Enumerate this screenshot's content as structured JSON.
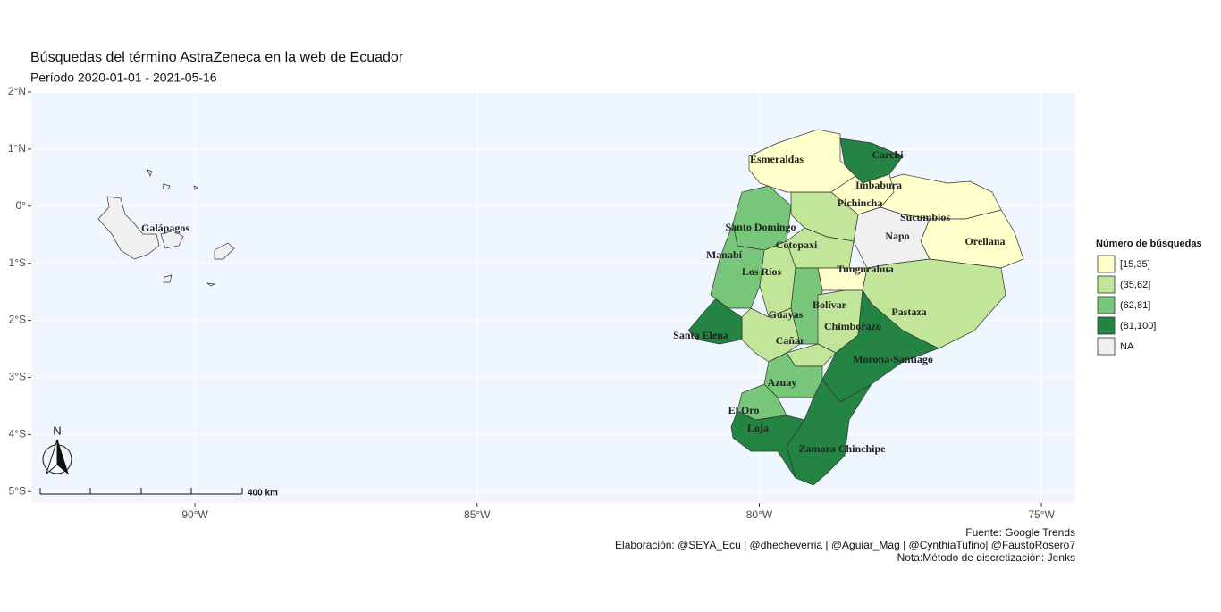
{
  "map": {
    "title": "Búsquedas del término AstraZeneca en la web de Ecuador",
    "subtitle": "Período 2020-01-01 - 2021-05-16",
    "xlim": [
      -92.9,
      -74.4
    ],
    "ylim": [
      -5.2,
      2.0
    ],
    "xticks": [
      {
        "value": -90,
        "label": "90°W"
      },
      {
        "value": -85,
        "label": "85°W"
      },
      {
        "value": -80,
        "label": "80°W"
      },
      {
        "value": -75,
        "label": "75°W"
      }
    ],
    "yticks": [
      {
        "value": 2,
        "label": "2°N"
      },
      {
        "value": 1,
        "label": "1°N"
      },
      {
        "value": 0,
        "label": "0°"
      },
      {
        "value": -1,
        "label": "1°S"
      },
      {
        "value": -2,
        "label": "2°S"
      },
      {
        "value": -3,
        "label": "3°S"
      },
      {
        "value": -4,
        "label": "4°S"
      },
      {
        "value": -5,
        "label": "5°S"
      }
    ],
    "grid": true,
    "legend": {
      "title": "Número de búsquedas",
      "items": [
        {
          "label": "[15,35]",
          "color": "#ffffcc"
        },
        {
          "label": "(35,62]",
          "color": "#c2e699"
        },
        {
          "label": "(62,81]",
          "color": "#78c679"
        },
        {
          "label": "(81,100]",
          "color": "#238443"
        },
        {
          "label": "NA",
          "color": "#f0f0f0"
        }
      ]
    },
    "regions": [
      {
        "name": "Galápagos",
        "category": "NA"
      },
      {
        "name": "Sucumbios",
        "category": "[15,35]"
      },
      {
        "name": "Orellana",
        "category": "[15,35]"
      },
      {
        "name": "Napo",
        "category": "NA"
      },
      {
        "name": "Imbabura",
        "category": "[15,35]"
      },
      {
        "name": "Pichincha",
        "category": "(35,62]"
      },
      {
        "name": "Santo Domingo",
        "category": "(62,81]"
      },
      {
        "name": "Manabí",
        "category": "(62,81]"
      },
      {
        "name": "Cotopaxi",
        "category": "(35,62]"
      },
      {
        "name": "Los Ríos",
        "category": "(35,62]"
      },
      {
        "name": "Tungurahua",
        "category": "[15,35]"
      },
      {
        "name": "Pastaza",
        "category": "(35,62]"
      },
      {
        "name": "Bolívar",
        "category": "(62,81]"
      },
      {
        "name": "Chimborazo",
        "category": "(35,62]"
      },
      {
        "name": "Morona-Santiago",
        "category": "(81,100]"
      },
      {
        "name": "Guayas",
        "category": "(35,62]"
      },
      {
        "name": "Santa Elena",
        "category": "(81,100]"
      },
      {
        "name": "Cañar",
        "category": "(35,62]"
      },
      {
        "name": "Azuay",
        "category": "(62,81]"
      },
      {
        "name": "El Oro",
        "category": "(62,81]"
      },
      {
        "name": "Zamora Chinchipe",
        "category": "(81,100]"
      },
      {
        "name": "Loja",
        "category": "(81,100]"
      },
      {
        "name": "Esmeraldas",
        "category": "[15,35]"
      },
      {
        "name": "Carchi",
        "category": "(81,100]"
      }
    ],
    "north_label": "N",
    "scale_bar_label": "400 km",
    "caption": [
      "Fuente: Google Trends",
      "Elaboración: @SEYA_Ecu | @dhecheverria | @Aguiar_Mag | @CynthiaTufino| @FaustoRosero7",
      "Nota:Método de discretización: Jenks"
    ]
  }
}
